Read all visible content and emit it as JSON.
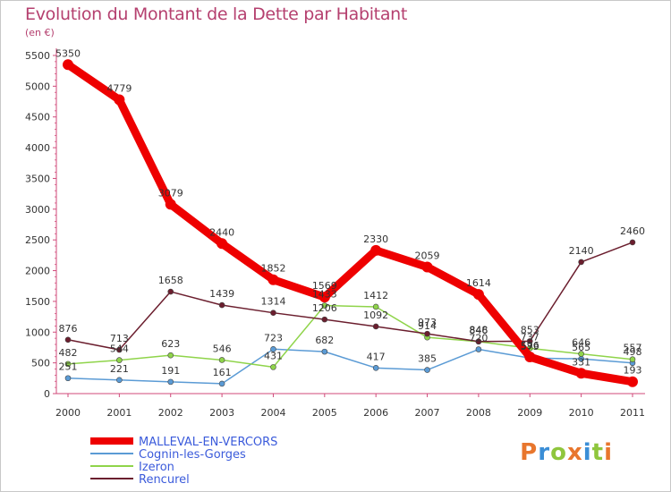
{
  "chart_data": {
    "type": "line",
    "title": "Evolution du Montant de la Dette par Habitant",
    "subtitle": "(en €)",
    "x": [
      "2000",
      "2001",
      "2002",
      "2003",
      "2004",
      "2005",
      "2006",
      "2007",
      "2008",
      "2009",
      "2010",
      "2011"
    ],
    "ylim": [
      0,
      5500
    ],
    "yticks": [
      0,
      500,
      1000,
      1500,
      2000,
      2500,
      3000,
      3500,
      4000,
      4500,
      5000,
      5500
    ],
    "grid": false,
    "legend_position": "bottom-left",
    "series": [
      {
        "name": "MALLEVAL-EN-VERCORS",
        "color": "#ee0000",
        "values": [
          5350,
          4779,
          3079,
          2440,
          1852,
          1569,
          2330,
          2059,
          1614,
          596,
          331,
          193
        ]
      },
      {
        "name": "Cognin-les-Gorges",
        "color": "#5b9bd5",
        "values": [
          251,
          221,
          191,
          161,
          723,
          682,
          417,
          385,
          720,
          579,
          565,
          498
        ]
      },
      {
        "name": "Izeron",
        "color": "#8fd44a",
        "values": [
          482,
          544,
          623,
          546,
          431,
          1433,
          1412,
          914,
          846,
          737,
          646,
          557
        ]
      },
      {
        "name": "Rencurel",
        "color": "#6b1e2e",
        "values": [
          876,
          713,
          1658,
          1439,
          1314,
          1206,
          1092,
          973,
          848,
          853,
          2140,
          2460
        ]
      }
    ]
  },
  "brand": "Proxiti"
}
